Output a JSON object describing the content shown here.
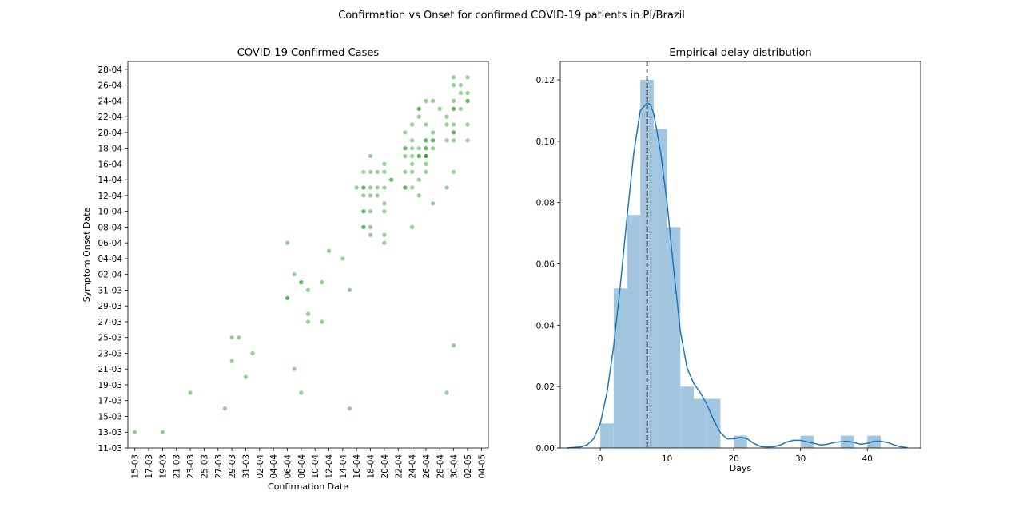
{
  "figure": {
    "title": "Confirmation vs Onset for confirmed COVID-19 patients in PI/Brazil"
  },
  "chart_data": [
    {
      "type": "scatter",
      "title": "COVID-19 Confirmed Cases",
      "xlabel": "Confirmation Date",
      "ylabel": "Symptom Onset Date",
      "x_ticks": [
        "15-03",
        "17-03",
        "19-03",
        "21-03",
        "23-03",
        "25-03",
        "27-03",
        "29-03",
        "31-03",
        "02-04",
        "04-04",
        "06-04",
        "08-04",
        "10-04",
        "12-04",
        "14-04",
        "16-04",
        "18-04",
        "20-04",
        "22-04",
        "24-04",
        "26-04",
        "28-04",
        "30-04",
        "02-05",
        "04-05"
      ],
      "y_ticks": [
        "11-03",
        "13-03",
        "15-03",
        "17-03",
        "19-03",
        "21-03",
        "23-03",
        "25-03",
        "27-03",
        "29-03",
        "31-03",
        "02-04",
        "04-04",
        "06-04",
        "08-04",
        "10-04",
        "12-04",
        "14-04",
        "16-04",
        "18-04",
        "20-04",
        "22-04",
        "24-04",
        "26-04",
        "28-04"
      ],
      "xlim": [
        "2020-03-14",
        "2020-05-05"
      ],
      "ylim": [
        "2020-03-11",
        "2020-04-29"
      ],
      "marker_color": "#2ca02c",
      "points": [
        {
          "x": "2020-03-15",
          "y": "2020-03-13"
        },
        {
          "x": "2020-03-19",
          "y": "2020-03-13"
        },
        {
          "x": "2020-03-23",
          "y": "2020-03-18"
        },
        {
          "x": "2020-03-28",
          "y": "2020-03-16"
        },
        {
          "x": "2020-03-29",
          "y": "2020-03-25"
        },
        {
          "x": "2020-03-29",
          "y": "2020-03-22"
        },
        {
          "x": "2020-03-30",
          "y": "2020-03-25"
        },
        {
          "x": "2020-03-31",
          "y": "2020-03-20"
        },
        {
          "x": "2020-04-01",
          "y": "2020-03-23"
        },
        {
          "x": "2020-04-06",
          "y": "2020-04-06"
        },
        {
          "x": "2020-04-06",
          "y": "2020-03-30"
        },
        {
          "x": "2020-04-06",
          "y": "2020-03-30"
        },
        {
          "x": "2020-04-07",
          "y": "2020-04-02"
        },
        {
          "x": "2020-04-07",
          "y": "2020-03-21"
        },
        {
          "x": "2020-04-08",
          "y": "2020-04-01"
        },
        {
          "x": "2020-04-08",
          "y": "2020-04-01"
        },
        {
          "x": "2020-04-08",
          "y": "2020-03-18"
        },
        {
          "x": "2020-04-09",
          "y": "2020-03-31"
        },
        {
          "x": "2020-04-09",
          "y": "2020-03-28"
        },
        {
          "x": "2020-04-09",
          "y": "2020-03-27"
        },
        {
          "x": "2020-04-11",
          "y": "2020-04-01"
        },
        {
          "x": "2020-04-11",
          "y": "2020-03-27"
        },
        {
          "x": "2020-04-12",
          "y": "2020-04-05"
        },
        {
          "x": "2020-04-14",
          "y": "2020-04-04"
        },
        {
          "x": "2020-04-15",
          "y": "2020-03-31"
        },
        {
          "x": "2020-04-15",
          "y": "2020-03-16"
        },
        {
          "x": "2020-04-16",
          "y": "2020-04-13"
        },
        {
          "x": "2020-04-17",
          "y": "2020-04-15"
        },
        {
          "x": "2020-04-17",
          "y": "2020-04-13"
        },
        {
          "x": "2020-04-17",
          "y": "2020-04-13"
        },
        {
          "x": "2020-04-17",
          "y": "2020-04-12"
        },
        {
          "x": "2020-04-17",
          "y": "2020-04-10"
        },
        {
          "x": "2020-04-17",
          "y": "2020-04-10"
        },
        {
          "x": "2020-04-17",
          "y": "2020-04-08"
        },
        {
          "x": "2020-04-17",
          "y": "2020-04-08"
        },
        {
          "x": "2020-04-18",
          "y": "2020-04-17"
        },
        {
          "x": "2020-04-18",
          "y": "2020-04-15"
        },
        {
          "x": "2020-04-18",
          "y": "2020-04-13"
        },
        {
          "x": "2020-04-18",
          "y": "2020-04-12"
        },
        {
          "x": "2020-04-18",
          "y": "2020-04-10"
        },
        {
          "x": "2020-04-18",
          "y": "2020-04-08"
        },
        {
          "x": "2020-04-18",
          "y": "2020-04-07"
        },
        {
          "x": "2020-04-19",
          "y": "2020-04-15"
        },
        {
          "x": "2020-04-19",
          "y": "2020-04-13"
        },
        {
          "x": "2020-04-19",
          "y": "2020-04-12"
        },
        {
          "x": "2020-04-20",
          "y": "2020-04-16"
        },
        {
          "x": "2020-04-20",
          "y": "2020-04-15"
        },
        {
          "x": "2020-04-20",
          "y": "2020-04-13"
        },
        {
          "x": "2020-04-20",
          "y": "2020-04-11"
        },
        {
          "x": "2020-04-20",
          "y": "2020-04-10"
        },
        {
          "x": "2020-04-20",
          "y": "2020-04-07"
        },
        {
          "x": "2020-04-20",
          "y": "2020-04-06"
        },
        {
          "x": "2020-04-21",
          "y": "2020-04-14"
        },
        {
          "x": "2020-04-21",
          "y": "2020-04-14"
        },
        {
          "x": "2020-04-23",
          "y": "2020-04-20"
        },
        {
          "x": "2020-04-23",
          "y": "2020-04-18"
        },
        {
          "x": "2020-04-23",
          "y": "2020-04-18"
        },
        {
          "x": "2020-04-23",
          "y": "2020-04-17"
        },
        {
          "x": "2020-04-23",
          "y": "2020-04-15"
        },
        {
          "x": "2020-04-23",
          "y": "2020-04-13"
        },
        {
          "x": "2020-04-23",
          "y": "2020-04-13"
        },
        {
          "x": "2020-04-24",
          "y": "2020-04-21"
        },
        {
          "x": "2020-04-24",
          "y": "2020-04-19"
        },
        {
          "x": "2020-04-24",
          "y": "2020-04-18"
        },
        {
          "x": "2020-04-24",
          "y": "2020-04-17"
        },
        {
          "x": "2020-04-24",
          "y": "2020-04-16"
        },
        {
          "x": "2020-04-24",
          "y": "2020-04-15"
        },
        {
          "x": "2020-04-24",
          "y": "2020-04-13"
        },
        {
          "x": "2020-04-24",
          "y": "2020-04-08"
        },
        {
          "x": "2020-04-25",
          "y": "2020-04-23"
        },
        {
          "x": "2020-04-25",
          "y": "2020-04-23"
        },
        {
          "x": "2020-04-25",
          "y": "2020-04-22"
        },
        {
          "x": "2020-04-25",
          "y": "2020-04-18"
        },
        {
          "x": "2020-04-25",
          "y": "2020-04-17"
        },
        {
          "x": "2020-04-25",
          "y": "2020-04-17"
        },
        {
          "x": "2020-04-25",
          "y": "2020-04-14"
        },
        {
          "x": "2020-04-25",
          "y": "2020-04-12"
        },
        {
          "x": "2020-04-26",
          "y": "2020-04-24"
        },
        {
          "x": "2020-04-26",
          "y": "2020-04-21"
        },
        {
          "x": "2020-04-26",
          "y": "2020-04-19"
        },
        {
          "x": "2020-04-26",
          "y": "2020-04-19"
        },
        {
          "x": "2020-04-26",
          "y": "2020-04-18"
        },
        {
          "x": "2020-04-26",
          "y": "2020-04-18"
        },
        {
          "x": "2020-04-26",
          "y": "2020-04-17"
        },
        {
          "x": "2020-04-26",
          "y": "2020-04-17"
        },
        {
          "x": "2020-04-26",
          "y": "2020-04-17"
        },
        {
          "x": "2020-04-26",
          "y": "2020-04-16"
        },
        {
          "x": "2020-04-26",
          "y": "2020-04-15"
        },
        {
          "x": "2020-04-27",
          "y": "2020-04-24"
        },
        {
          "x": "2020-04-27",
          "y": "2020-04-20"
        },
        {
          "x": "2020-04-27",
          "y": "2020-04-19"
        },
        {
          "x": "2020-04-27",
          "y": "2020-04-19"
        },
        {
          "x": "2020-04-27",
          "y": "2020-04-18"
        },
        {
          "x": "2020-04-27",
          "y": "2020-04-11"
        },
        {
          "x": "2020-04-28",
          "y": "2020-04-23"
        },
        {
          "x": "2020-04-29",
          "y": "2020-04-22"
        },
        {
          "x": "2020-04-29",
          "y": "2020-04-21"
        },
        {
          "x": "2020-04-29",
          "y": "2020-04-19"
        },
        {
          "x": "2020-04-29",
          "y": "2020-04-13"
        },
        {
          "x": "2020-04-29",
          "y": "2020-03-18"
        },
        {
          "x": "2020-04-30",
          "y": "2020-04-27"
        },
        {
          "x": "2020-04-30",
          "y": "2020-04-26"
        },
        {
          "x": "2020-04-30",
          "y": "2020-04-24"
        },
        {
          "x": "2020-04-30",
          "y": "2020-04-23"
        },
        {
          "x": "2020-04-30",
          "y": "2020-04-23"
        },
        {
          "x": "2020-04-30",
          "y": "2020-04-21"
        },
        {
          "x": "2020-04-30",
          "y": "2020-04-20"
        },
        {
          "x": "2020-04-30",
          "y": "2020-04-20"
        },
        {
          "x": "2020-04-30",
          "y": "2020-04-19"
        },
        {
          "x": "2020-04-30",
          "y": "2020-04-15"
        },
        {
          "x": "2020-04-30",
          "y": "2020-03-24"
        },
        {
          "x": "2020-05-01",
          "y": "2020-04-26"
        },
        {
          "x": "2020-05-01",
          "y": "2020-04-25"
        },
        {
          "x": "2020-05-01",
          "y": "2020-04-23"
        },
        {
          "x": "2020-05-02",
          "y": "2020-04-27"
        },
        {
          "x": "2020-05-02",
          "y": "2020-04-25"
        },
        {
          "x": "2020-05-02",
          "y": "2020-04-24"
        },
        {
          "x": "2020-05-02",
          "y": "2020-04-24"
        },
        {
          "x": "2020-05-02",
          "y": "2020-04-21"
        },
        {
          "x": "2020-05-02",
          "y": "2020-04-19"
        }
      ]
    },
    {
      "type": "bar",
      "subtype": "histogram_with_kde",
      "title": "Empirical delay distribution",
      "xlabel": "Days",
      "ylabel": "",
      "xlim": [
        -6,
        48
      ],
      "ylim": [
        0,
        0.126
      ],
      "x_ticks": [
        0,
        10,
        20,
        30,
        40
      ],
      "y_ticks": [
        0.0,
        0.02,
        0.04,
        0.06,
        0.08,
        0.1,
        0.12
      ],
      "bar_color": "#a3c6e0",
      "line_color": "#1f77b4",
      "bins": [
        {
          "start": 0,
          "end": 2,
          "value": 0.008
        },
        {
          "start": 2,
          "end": 4,
          "value": 0.052
        },
        {
          "start": 4,
          "end": 6,
          "value": 0.076
        },
        {
          "start": 6,
          "end": 8,
          "value": 0.12
        },
        {
          "start": 8,
          "end": 10,
          "value": 0.104
        },
        {
          "start": 10,
          "end": 12,
          "value": 0.072
        },
        {
          "start": 12,
          "end": 14,
          "value": 0.02
        },
        {
          "start": 14,
          "end": 16,
          "value": 0.016
        },
        {
          "start": 16,
          "end": 18,
          "value": 0.016
        },
        {
          "start": 20,
          "end": 22,
          "value": 0.004
        },
        {
          "start": 30,
          "end": 32,
          "value": 0.004
        },
        {
          "start": 36,
          "end": 38,
          "value": 0.004
        },
        {
          "start": 40,
          "end": 42,
          "value": 0.004
        }
      ],
      "kde": {
        "x": [
          -5,
          -3,
          -2,
          -1,
          0,
          1,
          2,
          3,
          4,
          5,
          6,
          7,
          7.5,
          8,
          9,
          10,
          11,
          12,
          13,
          14,
          15,
          16,
          17,
          18,
          19,
          20,
          21,
          22,
          23,
          24,
          25,
          26,
          27,
          28,
          29,
          30,
          31,
          32,
          33,
          34,
          35,
          36,
          37,
          38,
          39,
          40,
          41,
          42,
          43,
          44,
          45,
          46
        ],
        "y": [
          0.0,
          0.0003,
          0.001,
          0.003,
          0.008,
          0.018,
          0.033,
          0.053,
          0.075,
          0.096,
          0.11,
          0.1125,
          0.112,
          0.109,
          0.097,
          0.08,
          0.058,
          0.038,
          0.026,
          0.021,
          0.018,
          0.014,
          0.009,
          0.005,
          0.003,
          0.003,
          0.0035,
          0.003,
          0.0015,
          0.0005,
          0.0003,
          0.0004,
          0.001,
          0.002,
          0.0025,
          0.0025,
          0.002,
          0.0015,
          0.001,
          0.0012,
          0.0018,
          0.002,
          0.0022,
          0.0018,
          0.0012,
          0.0015,
          0.0022,
          0.0022,
          0.0018,
          0.001,
          0.0004,
          0.0001
        ]
      },
      "reference_line": {
        "x": 7,
        "style": "dashed",
        "color": "#000000"
      }
    }
  ]
}
